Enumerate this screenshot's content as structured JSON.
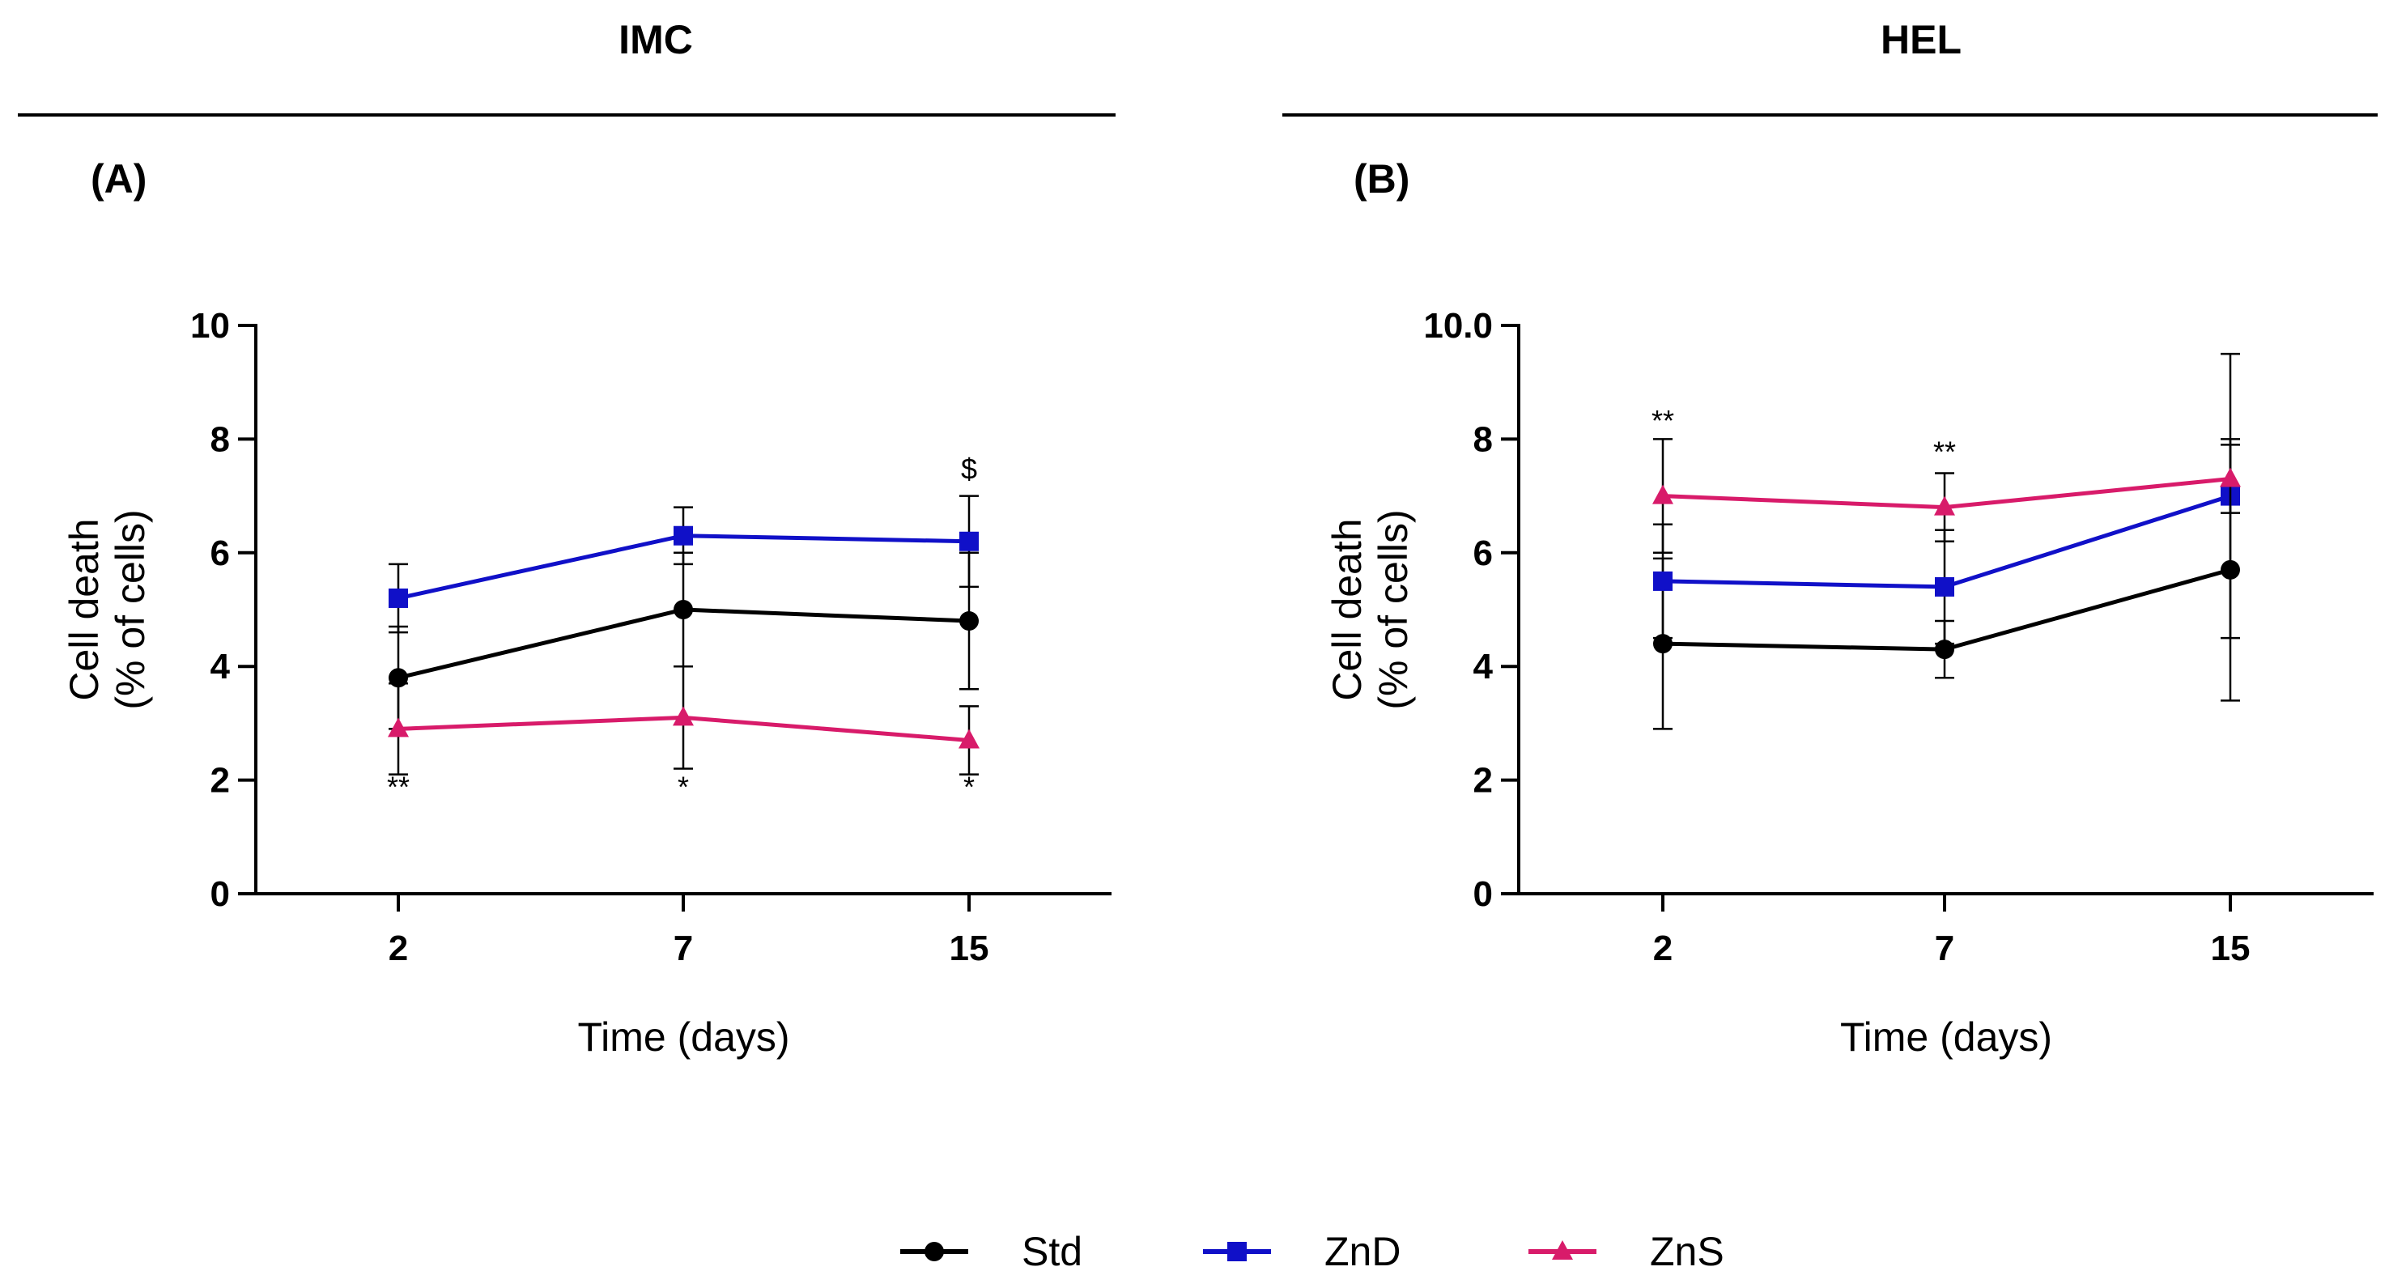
{
  "chart_data": [
    {
      "type": "line",
      "group_title": "IMC",
      "panel_label": "(A)",
      "ylabel_line1": "Cell death",
      "ylabel_line2": "(% of cells)",
      "xlabel": "Time (days)",
      "ylim": [
        0,
        10
      ],
      "yticks": [
        "0",
        "2",
        "4",
        "6",
        "8",
        "10"
      ],
      "categories": [
        "2",
        "7",
        "15"
      ],
      "series": [
        {
          "name": "Std",
          "color": "#000000",
          "marker": "circle",
          "values": [
            3.8,
            5.0,
            4.8
          ],
          "errors": [
            0.9,
            1.0,
            1.2
          ]
        },
        {
          "name": "ZnD",
          "color": "#1010c8",
          "marker": "square",
          "values": [
            5.2,
            6.3,
            6.2
          ],
          "errors": [
            0.6,
            0.5,
            0.8
          ]
        },
        {
          "name": "ZnS",
          "color": "#d81b6a",
          "marker": "triangle",
          "values": [
            2.9,
            3.1,
            2.7
          ],
          "errors": [
            0.8,
            0.9,
            0.6
          ]
        }
      ],
      "annotations": [
        {
          "text": "**",
          "x": "2",
          "y": 1.7
        },
        {
          "text": "*",
          "x": "7",
          "y": 1.7
        },
        {
          "text": "*",
          "x": "15",
          "y": 1.7
        },
        {
          "text": "$",
          "x": "15",
          "y": 7.3
        }
      ]
    },
    {
      "type": "line",
      "group_title": "HEL",
      "panel_label": "(B)",
      "ylabel_line1": "Cell death",
      "ylabel_line2": "(% of cells)",
      "xlabel": "Time (days)",
      "ylim": [
        0,
        10
      ],
      "yticks": [
        "0",
        "2",
        "4",
        "6",
        "8",
        "10.0"
      ],
      "categories": [
        "2",
        "7",
        "15"
      ],
      "series": [
        {
          "name": "Std",
          "color": "#000000",
          "marker": "circle",
          "values": [
            4.4,
            4.3,
            5.7
          ],
          "errors": [
            1.5,
            0.5,
            2.3
          ]
        },
        {
          "name": "ZnD",
          "color": "#1010c8",
          "marker": "square",
          "values": [
            5.5,
            5.4,
            7.0
          ],
          "errors": [
            1.0,
            1.0,
            2.5
          ]
        },
        {
          "name": "ZnS",
          "color": "#d81b6a",
          "marker": "triangle",
          "values": [
            7.0,
            6.8,
            7.3
          ],
          "errors": [
            1.0,
            0.6,
            0.6
          ]
        }
      ],
      "annotations": [
        {
          "text": "**",
          "x": "2",
          "y": 8.15
        },
        {
          "text": "**",
          "x": "7",
          "y": 7.6
        }
      ]
    }
  ],
  "legend": [
    {
      "label": "Std",
      "color": "#000000",
      "marker": "circle"
    },
    {
      "label": "ZnD",
      "color": "#1010c8",
      "marker": "square"
    },
    {
      "label": "ZnS",
      "color": "#d81b6a",
      "marker": "triangle"
    }
  ]
}
